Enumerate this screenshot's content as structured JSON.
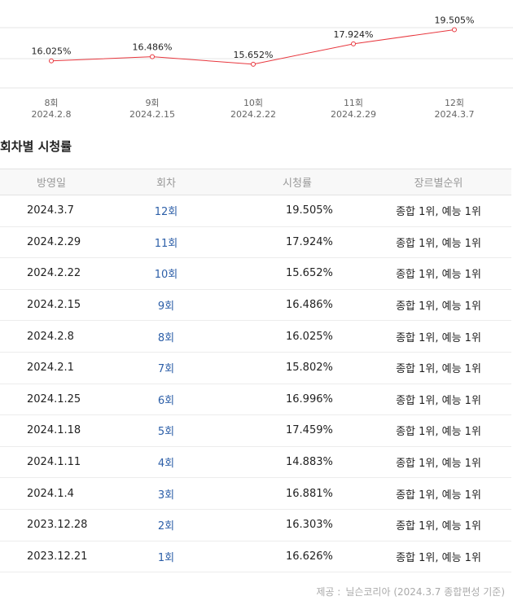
{
  "chart_data": {
    "type": "line",
    "series": [
      {
        "values": [
          16.025,
          16.486,
          15.652,
          17.924,
          19.505
        ]
      }
    ],
    "categories": [
      "8회",
      "9회",
      "10회",
      "11회",
      "12회"
    ],
    "dates": [
      "2024.2.8",
      "2024.2.15",
      "2024.2.22",
      "2024.2.29",
      "2024.3.7"
    ],
    "data_labels": [
      "16.025%",
      "16.486%",
      "15.652%",
      "17.924%",
      "19.505%"
    ],
    "ylim": [
      13,
      21
    ],
    "grid": true,
    "line_color": "#e8373e",
    "grid_color": "#e5e5e5"
  },
  "table": {
    "title": "회차별 시청률",
    "headers": {
      "date": "방영일",
      "episode": "회차",
      "rating": "시청률",
      "rank": "장르별순위"
    },
    "rows": [
      {
        "date": "2024.3.7",
        "episode": "12회",
        "rating": "19.505%",
        "rank": "종합 1위, 예능 1위"
      },
      {
        "date": "2024.2.29",
        "episode": "11회",
        "rating": "17.924%",
        "rank": "종합 1위, 예능 1위"
      },
      {
        "date": "2024.2.22",
        "episode": "10회",
        "rating": "15.652%",
        "rank": "종합 1위, 예능 1위"
      },
      {
        "date": "2024.2.15",
        "episode": "9회",
        "rating": "16.486%",
        "rank": "종합 1위, 예능 1위"
      },
      {
        "date": "2024.2.8",
        "episode": "8회",
        "rating": "16.025%",
        "rank": "종합 1위, 예능 1위"
      },
      {
        "date": "2024.2.1",
        "episode": "7회",
        "rating": "15.802%",
        "rank": "종합 1위, 예능 1위"
      },
      {
        "date": "2024.1.25",
        "episode": "6회",
        "rating": "16.996%",
        "rank": "종합 1위, 예능 1위"
      },
      {
        "date": "2024.1.18",
        "episode": "5회",
        "rating": "17.459%",
        "rank": "종합 1위, 예능 1위"
      },
      {
        "date": "2024.1.11",
        "episode": "4회",
        "rating": "14.883%",
        "rank": "종합 1위, 예능 1위"
      },
      {
        "date": "2024.1.4",
        "episode": "3회",
        "rating": "16.881%",
        "rank": "종합 1위, 예능 1위"
      },
      {
        "date": "2023.12.28",
        "episode": "2회",
        "rating": "16.303%",
        "rank": "종합 1위, 예능 1위"
      },
      {
        "date": "2023.12.21",
        "episode": "1회",
        "rating": "16.626%",
        "rank": "종합 1위, 예능 1위"
      }
    ]
  },
  "source": {
    "label": "제공 :",
    "text": "닐슨코리아 (2024.3.7 종합편성 기준)"
  },
  "colors": {
    "link": "#2d5fa8",
    "header_text": "#999999",
    "header_bg": "#f8f8f8"
  }
}
